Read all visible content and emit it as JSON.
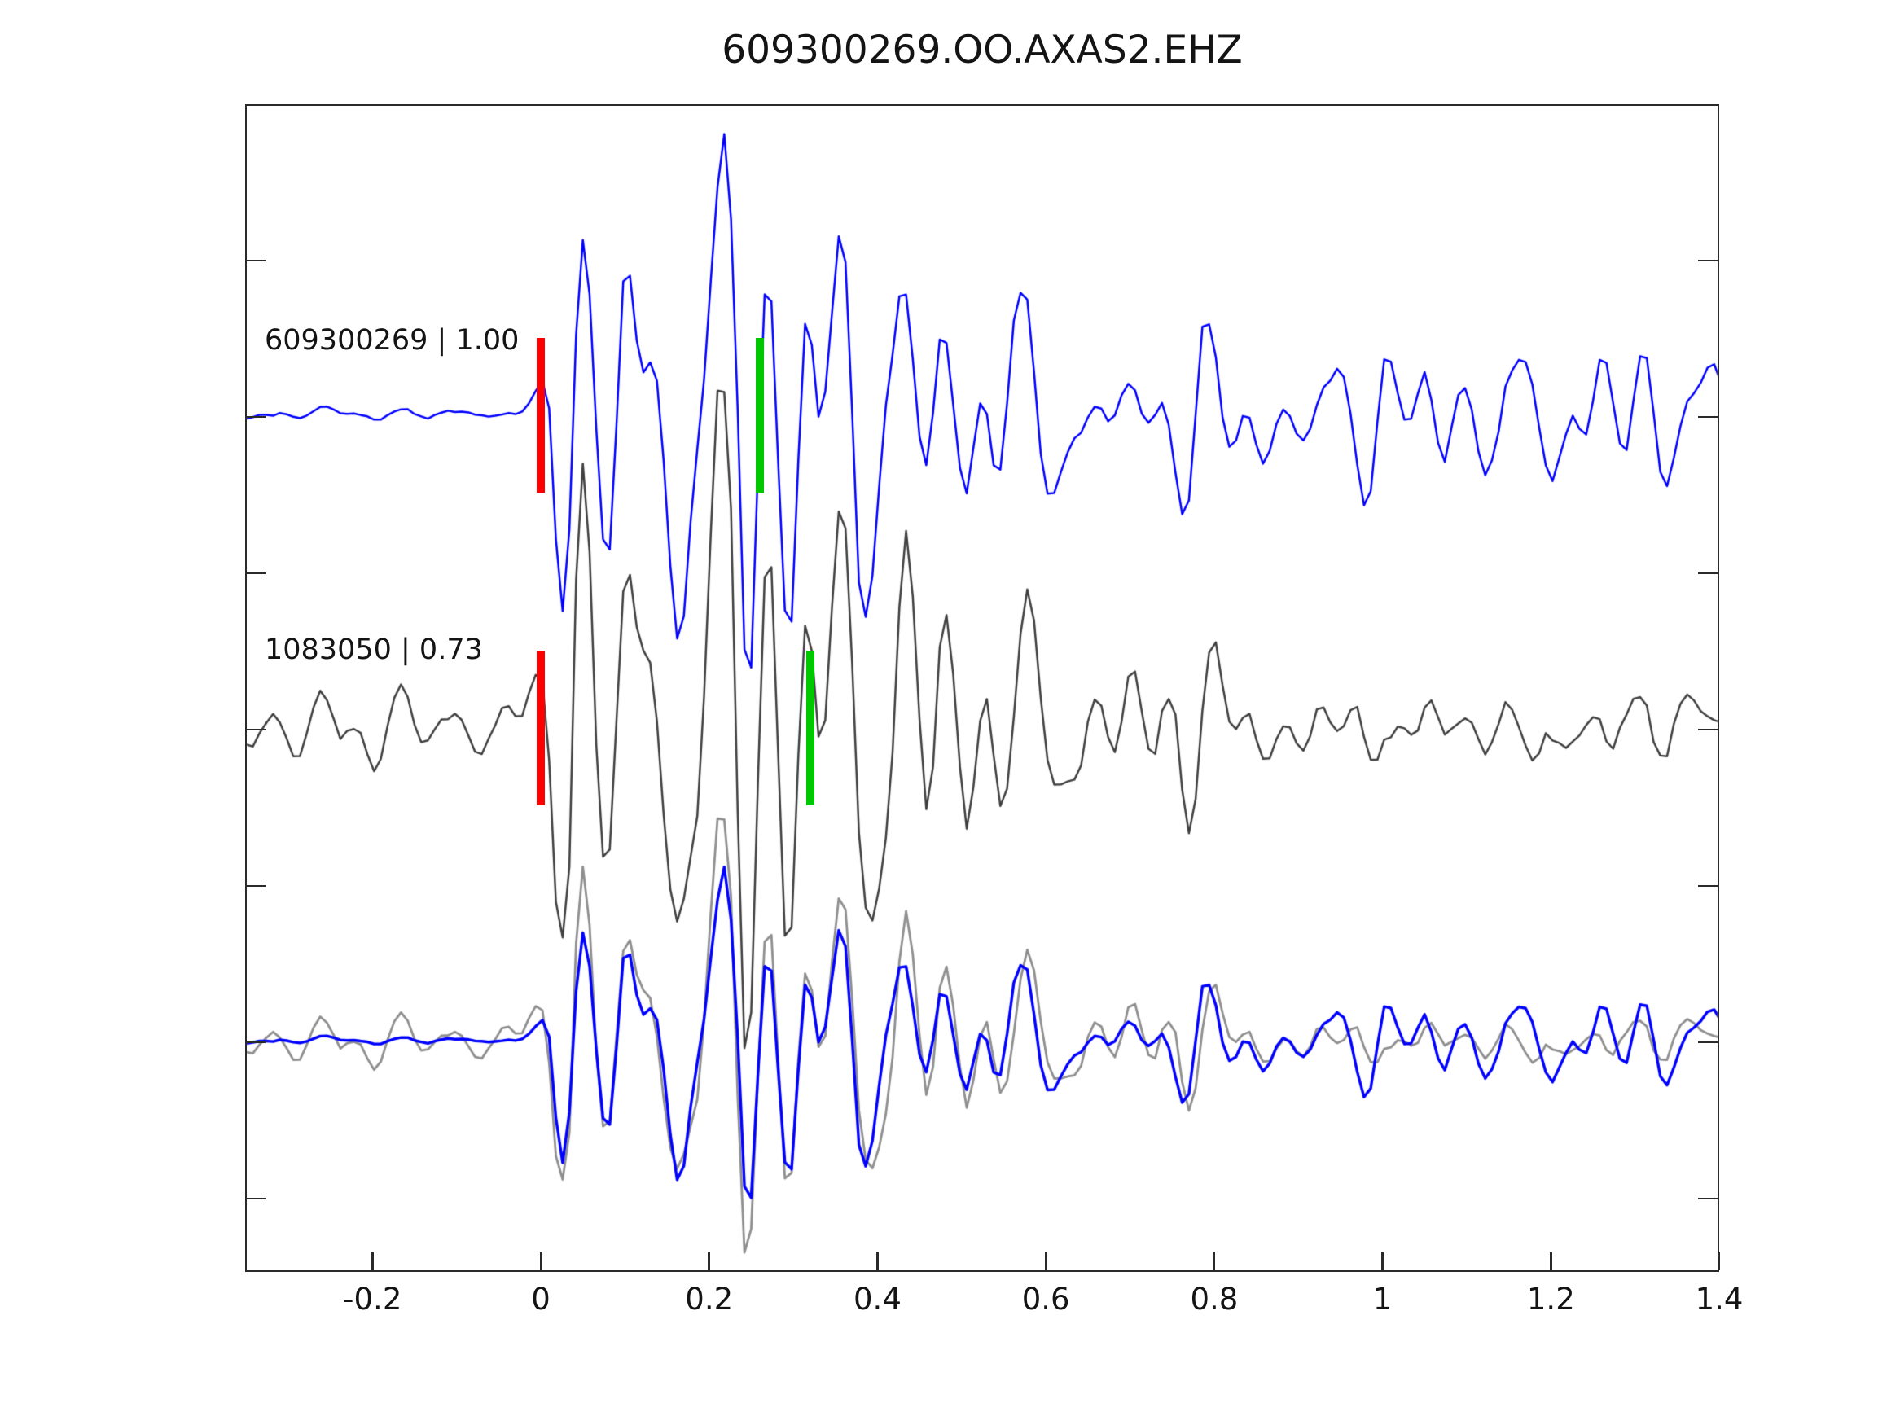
{
  "chart_data": {
    "type": "line",
    "title": "609300269.OO.AXAS2.EHZ",
    "x_axis": {
      "xlim": [
        -0.35,
        1.4
      ],
      "ticks": [
        -0.2,
        0,
        0.2,
        0.4,
        0.6,
        0.8,
        1,
        1.2,
        1.4
      ],
      "tick_labels": [
        "-0.2",
        "0",
        "0.2",
        "0.4",
        "0.6",
        "0.8",
        "1",
        "1.2",
        "1.4"
      ],
      "label": ""
    },
    "y_axis": {
      "tick_labels_shown": false,
      "trace_row_spacing_units": 2
    },
    "grid": false,
    "legend": "none",
    "colors": {
      "detection_line": "#0000ff",
      "template_line": "#3f3f3f",
      "overlay_template_line": "#8f8f8f",
      "red_pick": "#ff0000",
      "green_pick": "#00c800",
      "axes": "#2a2a2a",
      "text": "#141414",
      "background": "#ffffff"
    },
    "traces": [
      {
        "id": "detection",
        "label": "609300269 | 1.00",
        "event_id": "609300269",
        "correlation": "1.00",
        "color": "#0000ff",
        "row": 0,
        "picks": [
          {
            "time": 0.0,
            "color": "#ff0000",
            "kind": "red-pick"
          },
          {
            "time": 0.26,
            "color": "#00c800",
            "kind": "green-pick"
          }
        ]
      },
      {
        "id": "template",
        "label": "1083050 | 0.73",
        "event_id": "1083050",
        "correlation": "0.73",
        "color": "#3f3f3f",
        "row": 1,
        "picks": [
          {
            "time": 0.0,
            "color": "#ff0000",
            "kind": "red-pick"
          },
          {
            "time": 0.32,
            "color": "#00c800",
            "kind": "green-pick"
          }
        ]
      },
      {
        "id": "overlay",
        "label": "",
        "row": 2,
        "picks": [],
        "components": [
          {
            "ref": "template",
            "color": "#8f8f8f",
            "scale": 0.66
          },
          {
            "ref": "detection",
            "color": "#0000ff",
            "scale": 0.62
          }
        ]
      }
    ],
    "waveform_spec": {
      "comment": "Approximation of the seismogram wiggles read from the figure: quiet noise until t=0 (red pick), strong 15-25 Hz arrival peaking near t=0.2, decaying coda to t=1.4.",
      "t0": -0.35,
      "t1": 1.4,
      "dt": 0.008,
      "detection": {
        "seed": 20,
        "amplitude": 300,
        "freqs": [
          19,
          23,
          13.5,
          8.5
        ],
        "jitter": 1.1,
        "mix_base": 0,
        "envelope": [
          [
            -0.35,
            0.025
          ],
          [
            -0.03,
            0.028
          ],
          [
            0.0,
            0.15
          ],
          [
            0.02,
            0.5
          ],
          [
            0.05,
            0.8
          ],
          [
            0.12,
            0.9
          ],
          [
            0.18,
            1.0
          ],
          [
            0.26,
            0.95
          ],
          [
            0.34,
            0.8
          ],
          [
            0.42,
            0.62
          ],
          [
            0.5,
            0.42
          ],
          [
            0.58,
            0.32
          ],
          [
            0.7,
            0.28
          ],
          [
            0.85,
            0.26
          ],
          [
            1.05,
            0.24
          ],
          [
            1.25,
            0.24
          ],
          [
            1.4,
            0.22
          ]
        ],
        "noise_envelope": [
          [
            -0.35,
            0.03
          ],
          [
            0.0,
            0.03
          ],
          [
            0.15,
            0.055
          ],
          [
            1.4,
            0.05
          ]
        ]
      },
      "template": {
        "seed": 77,
        "amplitude": 290,
        "freqs": [
          18.5,
          22.5,
          13,
          8
        ],
        "jitter": 1.25,
        "mix_base": 0.66,
        "envelope": [
          [
            -0.35,
            0.1
          ],
          [
            -0.02,
            0.12
          ],
          [
            0.0,
            0.2
          ],
          [
            0.02,
            0.55
          ],
          [
            0.05,
            0.85
          ],
          [
            0.12,
            0.95
          ],
          [
            0.18,
            1.0
          ],
          [
            0.26,
            0.92
          ],
          [
            0.34,
            0.8
          ],
          [
            0.42,
            0.65
          ],
          [
            0.5,
            0.48
          ],
          [
            0.58,
            0.38
          ],
          [
            0.7,
            0.33
          ],
          [
            0.85,
            0.3
          ],
          [
            1.05,
            0.28
          ],
          [
            1.25,
            0.28
          ],
          [
            1.4,
            0.26
          ]
        ],
        "noise_envelope": [
          [
            -0.35,
            0.08
          ],
          [
            0.0,
            0.08
          ],
          [
            1.4,
            0.065
          ]
        ]
      }
    }
  }
}
